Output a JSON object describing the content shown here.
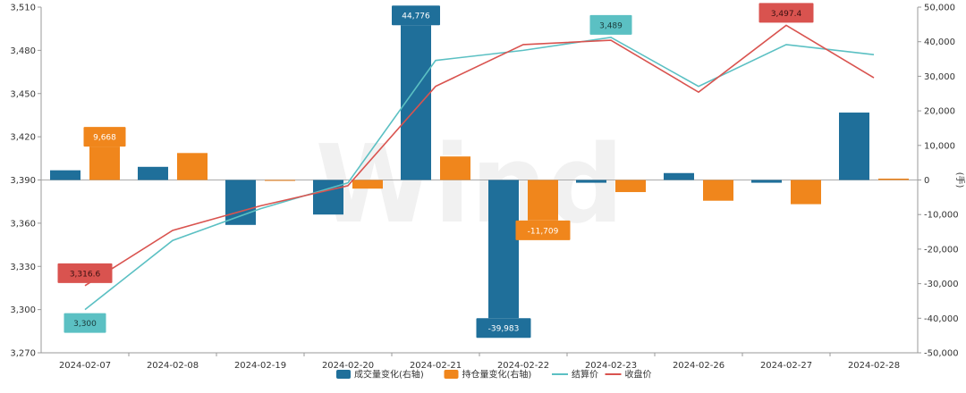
{
  "chart_data": {
    "type": "bar-line-combo",
    "categories": [
      "2024-02-07",
      "2024-02-08",
      "2024-02-19",
      "2024-02-20",
      "2024-02-21",
      "2024-02-22",
      "2024-02-23",
      "2024-02-26",
      "2024-02-27",
      "2024-02-28"
    ],
    "y_left": {
      "min": 3270,
      "max": 3510,
      "ticks": [
        "3,270",
        "3,300",
        "3,330",
        "3,360",
        "3,390",
        "3,420",
        "3,450",
        "3,480",
        "3,510"
      ]
    },
    "y_right": {
      "min": -50000,
      "max": 50000,
      "label": "(手)",
      "ticks": [
        "-50,000",
        "-40,000",
        "-30,000",
        "-20,000",
        "-10,000",
        "0",
        "10,000",
        "20,000",
        "30,000",
        "40,000",
        "50,000"
      ]
    },
    "bar_series": [
      {
        "name": "成交量变化(右轴)",
        "color": "#1f6f9a",
        "axis": "right",
        "values": [
          2800,
          3800,
          -13000,
          -10000,
          44776,
          -39983,
          -800,
          2000,
          -800,
          19500
        ]
      },
      {
        "name": "持仓量变化(右轴)",
        "color": "#f0861c",
        "axis": "right",
        "values": [
          9668,
          7800,
          -200,
          -2500,
          6800,
          -11709,
          -3500,
          -6000,
          -7000,
          400
        ]
      }
    ],
    "line_series": [
      {
        "name": "结算价",
        "color": "#5bc0c3",
        "axis": "left",
        "values": [
          3300,
          3348,
          3370,
          3388,
          3473,
          3480,
          3489,
          3455,
          3484,
          3477
        ]
      },
      {
        "name": "收盘价",
        "color": "#d9534f",
        "axis": "left",
        "values": [
          3316.6,
          3355,
          3372,
          3386,
          3455,
          3484,
          3487,
          3451,
          3497.4,
          3461
        ]
      }
    ],
    "callouts": [
      {
        "series": 0,
        "index": 4,
        "text": "44,776"
      },
      {
        "series": 0,
        "index": 5,
        "text": "-39,983"
      },
      {
        "series": 1,
        "index": 0,
        "text": "9,668"
      },
      {
        "series": 1,
        "index": 5,
        "text": "-11,709"
      },
      {
        "series": "line0",
        "index": 0,
        "text": "3,300",
        "place": "below"
      },
      {
        "series": "line0",
        "index": 6,
        "text": "3,489",
        "place": "above"
      },
      {
        "series": "line1",
        "index": 0,
        "text": "3,316.6",
        "place": "above"
      },
      {
        "series": "line1",
        "index": 8,
        "text": "3,497.4",
        "place": "above"
      }
    ],
    "legend": [
      {
        "name": "成交量变化(右轴)",
        "color": "#1f6f9a",
        "kind": "bar"
      },
      {
        "name": "持仓量变化(右轴)",
        "color": "#f0861c",
        "kind": "bar"
      },
      {
        "name": "结算价",
        "color": "#5bc0c3",
        "kind": "line"
      },
      {
        "name": "收盘价",
        "color": "#d9534f",
        "kind": "line"
      }
    ],
    "watermark": "Wind",
    "grid": false
  }
}
